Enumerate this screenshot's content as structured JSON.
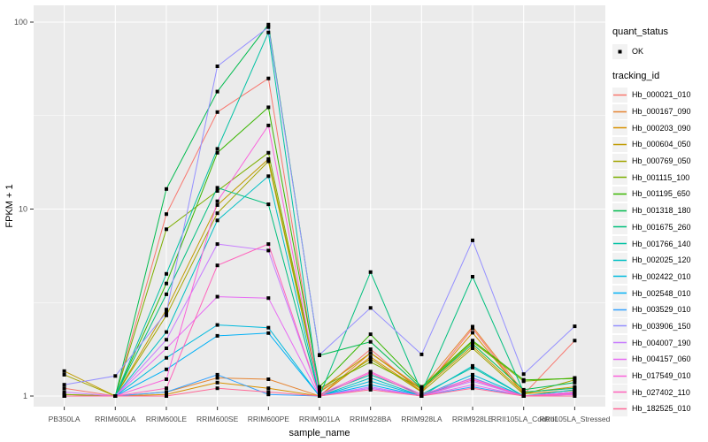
{
  "chart_data": {
    "type": "line",
    "title": "",
    "xlabel": "sample_name",
    "ylabel": "FPKM + 1",
    "y_scale": "log10",
    "y_ticks": [
      1,
      10,
      100
    ],
    "y_minor_ticks": [
      3.1623,
      31.623
    ],
    "ylim": [
      0.88,
      123
    ],
    "grid": true,
    "legend_position": "right",
    "panel_bg": "#EBEBEB",
    "grid_color": "#FFFFFF",
    "tick_color": "#333333",
    "tick_label_color": "#4D4D4D",
    "point_color": "#000000",
    "legend_key_bg": "#F2F2F2",
    "quant_status": {
      "title": "quant_status",
      "items": [
        {
          "label": "OK",
          "marker": "black-point"
        }
      ]
    },
    "tracking_legend_title": "tracking_id",
    "categories": [
      "PB350LA",
      "RRIM600LA",
      "RRIM600LE",
      "RRIM600SE",
      "RRIM600PE",
      "RRIM901LA",
      "RRIM928BA",
      "RRIM928LA",
      "RRIM928LE",
      "RRII105LA_Control",
      "RRII105LA_Stressed"
    ],
    "series": [
      {
        "name": "Hb_000021_010",
        "color": "#F8766D",
        "values": [
          1.1,
          1.0,
          9.4,
          33.0,
          50.0,
          1.05,
          1.78,
          1.05,
          2.3,
          1.02,
          1.98
        ]
      },
      {
        "name": "Hb_000167_090",
        "color": "#E68431",
        "values": [
          1.02,
          1.0,
          1.05,
          1.25,
          1.23,
          1.0,
          1.7,
          1.1,
          2.35,
          1.05,
          1.1
        ]
      },
      {
        "name": "Hb_000203_090",
        "color": "#D89000",
        "values": [
          1.0,
          1.0,
          1.02,
          1.18,
          1.1,
          1.0,
          1.62,
          1.06,
          2.18,
          1.03,
          1.07
        ]
      },
      {
        "name": "Hb_000604_050",
        "color": "#C09B00",
        "values": [
          1.36,
          1.0,
          2.9,
          10.5,
          18.5,
          1.08,
          1.7,
          1.08,
          1.85,
          1.04,
          1.12
        ]
      },
      {
        "name": "Hb_000769_050",
        "color": "#A3A500",
        "values": [
          1.3,
          1.0,
          2.7,
          9.5,
          18.0,
          1.05,
          1.58,
          1.05,
          1.8,
          1.02,
          1.22
        ]
      },
      {
        "name": "Hb_001115_100",
        "color": "#7CAE00",
        "values": [
          1.02,
          1.0,
          7.8,
          12.5,
          20.0,
          1.1,
          1.52,
          1.1,
          1.95,
          1.2,
          1.25
        ]
      },
      {
        "name": "Hb_001195_650",
        "color": "#39B600",
        "values": [
          1.0,
          1.0,
          4.0,
          20.0,
          35.0,
          1.12,
          2.14,
          1.12,
          1.98,
          1.22,
          1.24
        ]
      },
      {
        "name": "Hb_001318_180",
        "color": "#00BB4E",
        "values": [
          1.0,
          1.0,
          12.8,
          42.5,
          97.0,
          1.65,
          1.95,
          1.1,
          1.9,
          1.08,
          1.18
        ]
      },
      {
        "name": "Hb_001675_260",
        "color": "#00BF7D",
        "values": [
          1.0,
          1.0,
          3.5,
          13.0,
          10.6,
          1.0,
          4.6,
          1.05,
          4.35,
          1.05,
          1.1
        ]
      },
      {
        "name": "Hb_001766_140",
        "color": "#00C1A3",
        "values": [
          1.0,
          1.0,
          4.5,
          21.0,
          88.0,
          1.02,
          1.3,
          1.02,
          1.42,
          1.0,
          1.05
        ]
      },
      {
        "name": "Hb_002025_120",
        "color": "#00BFC4",
        "values": [
          1.0,
          1.0,
          2.2,
          8.7,
          15.0,
          1.0,
          1.25,
          1.0,
          1.45,
          1.0,
          1.08
        ]
      },
      {
        "name": "Hb_002422_010",
        "color": "#00BADE",
        "values": [
          1.0,
          1.0,
          1.6,
          2.4,
          2.32,
          1.0,
          1.2,
          1.0,
          1.3,
          1.0,
          1.05
        ]
      },
      {
        "name": "Hb_002548_010",
        "color": "#00B0F6",
        "values": [
          1.0,
          1.0,
          1.39,
          2.1,
          2.17,
          1.0,
          1.15,
          1.0,
          1.25,
          1.0,
          1.03
        ]
      },
      {
        "name": "Hb_003529_010",
        "color": "#35A2FF",
        "values": [
          1.0,
          1.0,
          1.05,
          1.3,
          1.02,
          1.0,
          1.1,
          1.0,
          1.12,
          1.0,
          1.02
        ]
      },
      {
        "name": "Hb_003906_150",
        "color": "#9590FF",
        "values": [
          1.15,
          1.28,
          2.8,
          58.0,
          94.0,
          1.66,
          2.96,
          1.67,
          6.8,
          1.31,
          2.36
        ]
      },
      {
        "name": "Hb_004007_190",
        "color": "#C77CFF",
        "values": [
          1.05,
          1.0,
          2.0,
          6.5,
          6.0,
          1.0,
          1.12,
          1.0,
          1.2,
          1.0,
          1.05
        ]
      },
      {
        "name": "Hb_004157_060",
        "color": "#E76BF3",
        "values": [
          1.0,
          1.0,
          1.8,
          3.4,
          3.34,
          1.0,
          1.1,
          1.0,
          1.15,
          1.0,
          1.02
        ]
      },
      {
        "name": "Hb_017549_010",
        "color": "#FA62DB",
        "values": [
          1.0,
          1.0,
          1.23,
          11.0,
          28.0,
          1.02,
          1.35,
          1.02,
          1.24,
          1.0,
          1.04
        ]
      },
      {
        "name": "Hb_027402_110",
        "color": "#FF62BC",
        "values": [
          1.0,
          1.0,
          1.1,
          5.0,
          6.5,
          1.0,
          1.33,
          1.0,
          1.22,
          1.0,
          1.03
        ]
      },
      {
        "name": "Hb_182525_010",
        "color": "#FF6A98",
        "values": [
          1.0,
          1.0,
          1.0,
          1.1,
          1.05,
          1.0,
          1.08,
          1.0,
          1.1,
          1.0,
          1.0
        ]
      }
    ]
  }
}
